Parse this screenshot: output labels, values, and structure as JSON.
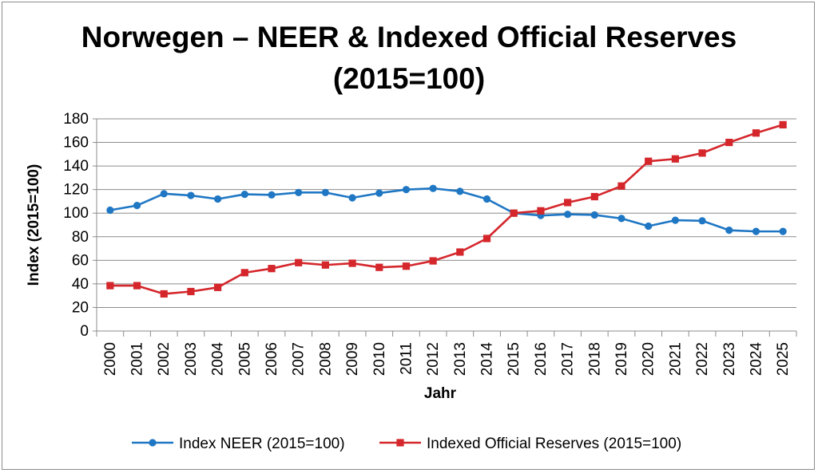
{
  "chart_data": {
    "type": "line",
    "title_lines": [
      "Norwegen – NEER & Indexed Official Reserves",
      "(2015=100)"
    ],
    "xlabel": "Jahr",
    "ylabel": "Index (2015=100)",
    "ylim": [
      0,
      180
    ],
    "ystep": 20,
    "grid": true,
    "legend_position": "bottom",
    "x": [
      "2000",
      "2001",
      "2002",
      "2003",
      "2004",
      "2005",
      "2006",
      "2007",
      "2008",
      "2009",
      "2010",
      "2011",
      "2012",
      "2013",
      "2014",
      "2015",
      "2016",
      "2017",
      "2018",
      "2019",
      "2020",
      "2021",
      "2022",
      "2023",
      "2024",
      "2025"
    ],
    "series": [
      {
        "name": "Index NEER (2015=100)",
        "color": "#1f77c4",
        "marker": "circle",
        "values": [
          102.5,
          106.5,
          116.5,
          115,
          112,
          116,
          115.5,
          117.5,
          117.5,
          113,
          117,
          120,
          121,
          118.5,
          112,
          100,
          98,
          99,
          98.5,
          95.5,
          89,
          94,
          93.5,
          85.5,
          84.5,
          84.5
        ]
      },
      {
        "name": "Indexed Official Reserves (2015=100)",
        "color": "#d4262b",
        "marker": "square",
        "values": [
          38.5,
          38.5,
          31.5,
          33.5,
          37,
          49.5,
          53,
          58,
          56,
          57.5,
          54,
          55,
          59.5,
          67,
          78.5,
          100,
          102,
          109,
          114,
          123,
          144,
          146,
          151,
          160,
          168,
          175
        ]
      }
    ]
  }
}
